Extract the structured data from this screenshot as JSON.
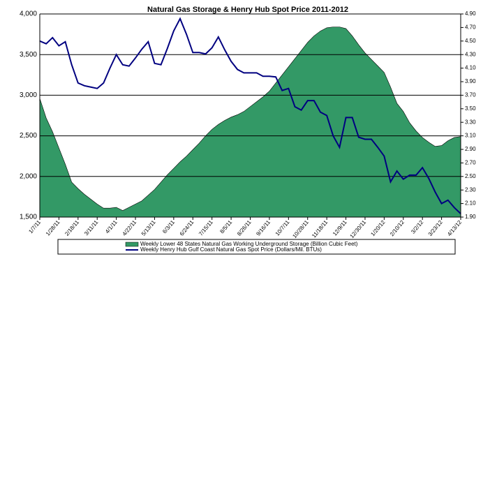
{
  "chart_data": {
    "type": "area-line",
    "title": "Natural Gas Storage & Henry Hub Spot Price 2011-2012",
    "categories": [
      "1/7/11",
      null,
      null,
      "1/28/11",
      null,
      null,
      "2/18/11",
      null,
      null,
      "3/11/11",
      null,
      null,
      "4/1/11",
      null,
      null,
      "4/22/11",
      null,
      null,
      "5/13/11",
      null,
      null,
      "6/3/11",
      null,
      null,
      "6/24/11",
      null,
      null,
      "7/15/11",
      null,
      null,
      "8/5/11",
      null,
      null,
      "8/26/11",
      null,
      null,
      "9/16/11",
      null,
      null,
      "10/7/11",
      null,
      null,
      "10/28/11",
      null,
      null,
      "11/18/11",
      null,
      null,
      "12/9/11",
      null,
      null,
      "12/30/11",
      null,
      null,
      "1/20/12",
      null,
      null,
      "2/10/12",
      null,
      null,
      "3/2/12",
      null,
      null,
      "3/23/12",
      null,
      null,
      "4/13/12"
    ],
    "series": [
      {
        "name": "Weekly Lower 48 States Natural Gas Working Underground Storage  (Billion Cubic Feet)",
        "kind": "area",
        "color": "#339966",
        "values": [
          2960,
          2720,
          2550,
          2350,
          2150,
          1930,
          1850,
          1780,
          1720,
          1660,
          1610,
          1610,
          1620,
          1580,
          1620,
          1660,
          1700,
          1770,
          1840,
          1930,
          2020,
          2100,
          2180,
          2250,
          2330,
          2410,
          2500,
          2580,
          2640,
          2690,
          2730,
          2760,
          2800,
          2860,
          2920,
          2980,
          3050,
          3150,
          3250,
          3350,
          3450,
          3550,
          3650,
          3730,
          3790,
          3830,
          3840,
          3840,
          3820,
          3730,
          3620,
          3520,
          3440,
          3360,
          3280,
          3100,
          2900,
          2800,
          2660,
          2560,
          2480,
          2420,
          2370,
          2380,
          2440,
          2480,
          2490
        ]
      },
      {
        "name": "Weekly Henry Hub Gulf Coast Natural Gas Spot Price (Dollars/Mil. BTUs)",
        "kind": "line",
        "axis": "y2",
        "color": "#000080",
        "values": [
          4.5,
          4.46,
          4.55,
          4.43,
          4.49,
          4.15,
          3.88,
          3.84,
          3.82,
          3.8,
          3.88,
          4.1,
          4.3,
          4.15,
          4.13,
          4.25,
          4.38,
          4.49,
          4.17,
          4.15,
          4.39,
          4.65,
          4.83,
          4.6,
          4.33,
          4.33,
          4.31,
          4.4,
          4.56,
          4.37,
          4.2,
          4.08,
          4.03,
          4.03,
          4.03,
          3.98,
          3.98,
          3.97,
          3.77,
          3.8,
          3.53,
          3.48,
          3.62,
          3.62,
          3.45,
          3.4,
          3.1,
          2.93,
          3.37,
          3.37,
          3.08,
          3.05,
          3.05,
          2.93,
          2.8,
          2.42,
          2.58,
          2.46,
          2.52,
          2.52,
          2.63,
          2.47,
          2.27,
          2.1,
          2.15,
          2.04,
          1.95
        ]
      }
    ],
    "ylim": [
      1500,
      4000
    ],
    "yticks": [
      {
        "value": 1500,
        "label": "1,500"
      },
      {
        "value": 2000,
        "label": "2,000"
      },
      {
        "value": 2500,
        "label": "2,500"
      },
      {
        "value": 3000,
        "label": "3,000"
      },
      {
        "value": 3500,
        "label": "3,500"
      },
      {
        "value": 4000,
        "label": "4,000"
      }
    ],
    "y2lim": [
      1.9,
      4.9
    ],
    "y2ticks": [
      {
        "value": 1.9,
        "label": "1.90"
      },
      {
        "value": 2.1,
        "label": "2.10"
      },
      {
        "value": 2.3,
        "label": "2.30"
      },
      {
        "value": 2.5,
        "label": "2.50"
      },
      {
        "value": 2.7,
        "label": "2.70"
      },
      {
        "value": 2.9,
        "label": "2.90"
      },
      {
        "value": 3.1,
        "label": "3.10"
      },
      {
        "value": 3.3,
        "label": "3.30"
      },
      {
        "value": 3.5,
        "label": "3.50"
      },
      {
        "value": 3.7,
        "label": "3.70"
      },
      {
        "value": 3.9,
        "label": "3.90"
      },
      {
        "value": 4.1,
        "label": "4.10"
      },
      {
        "value": 4.3,
        "label": "4.30"
      },
      {
        "value": 4.5,
        "label": "4.50"
      },
      {
        "value": 4.7,
        "label": "4.70"
      },
      {
        "value": 4.9,
        "label": "4.90"
      }
    ],
    "grid": true
  }
}
